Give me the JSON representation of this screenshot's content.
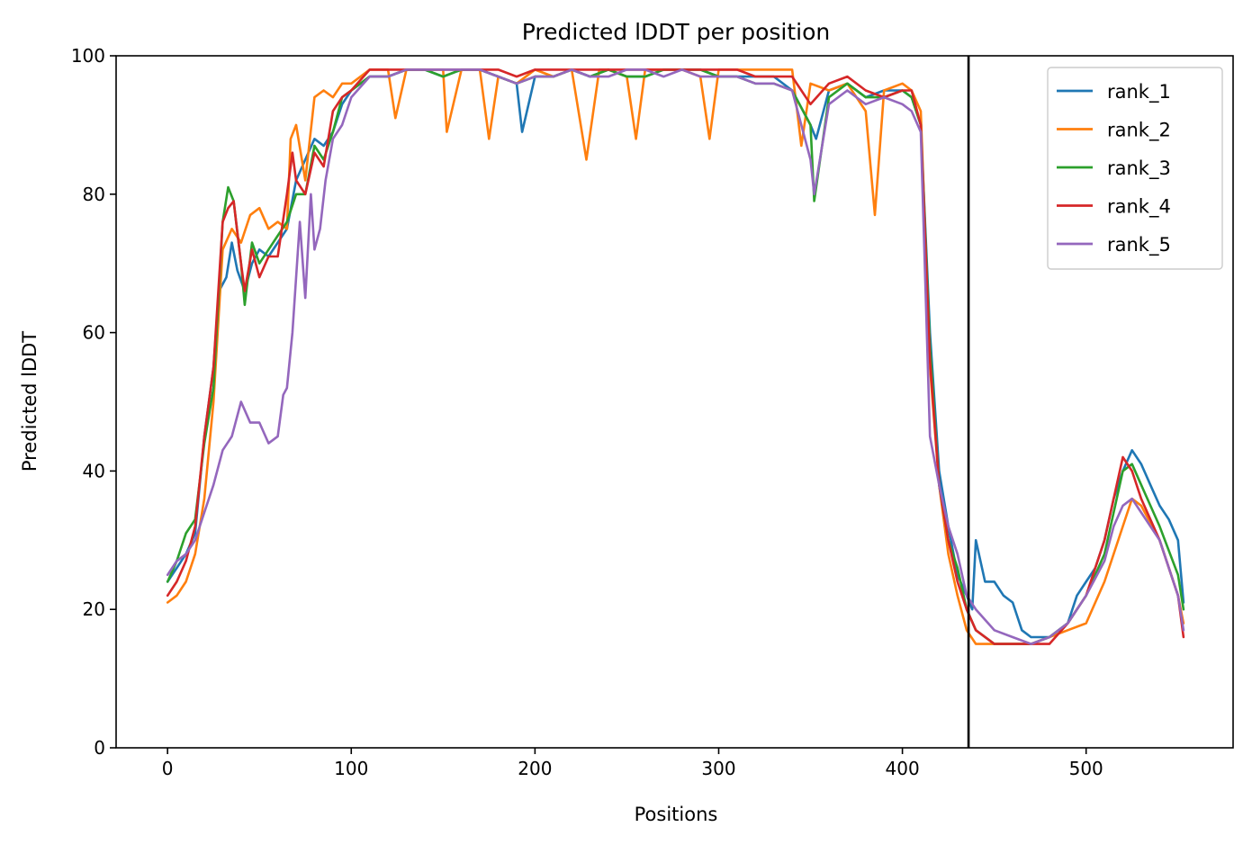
{
  "chart_data": {
    "type": "line",
    "title": "Predicted lDDT per position",
    "xlabel": "Positions",
    "ylabel": "Predicted lDDT",
    "xlim": [
      -28,
      580
    ],
    "ylim": [
      0,
      100
    ],
    "xticks": [
      0,
      100,
      200,
      300,
      400,
      500
    ],
    "yticks": [
      0,
      20,
      40,
      60,
      80,
      100
    ],
    "grid": false,
    "legend_position": "top-right",
    "vertical_line_x": 436,
    "vertical_line_color": "#000000",
    "series": [
      {
        "name": "rank_1",
        "color": "#1f77b4",
        "x": [
          0,
          5,
          10,
          15,
          20,
          25,
          28,
          32,
          35,
          38,
          42,
          46,
          50,
          55,
          60,
          65,
          70,
          75,
          80,
          85,
          90,
          95,
          100,
          110,
          120,
          130,
          140,
          150,
          160,
          170,
          180,
          190,
          193,
          200,
          210,
          220,
          230,
          240,
          250,
          260,
          270,
          280,
          290,
          300,
          310,
          320,
          330,
          340,
          350,
          353,
          360,
          370,
          380,
          390,
          400,
          405,
          410,
          415,
          420,
          425,
          430,
          435,
          438,
          440,
          445,
          450,
          455,
          460,
          465,
          470,
          475,
          480,
          485,
          490,
          495,
          500,
          505,
          510,
          515,
          520,
          525,
          530,
          535,
          540,
          545,
          550,
          553
        ],
        "values": [
          24,
          26,
          28,
          31,
          45,
          55,
          66,
          68,
          73,
          69,
          66,
          70,
          72,
          71,
          73,
          75,
          82,
          85,
          88,
          87,
          89,
          93,
          95,
          97,
          97,
          98,
          98,
          97,
          98,
          98,
          97,
          96,
          89,
          97,
          97,
          98,
          97,
          98,
          97,
          97,
          98,
          98,
          98,
          97,
          97,
          97,
          97,
          95,
          90,
          88,
          95,
          96,
          94,
          95,
          95,
          94,
          90,
          60,
          40,
          32,
          25,
          22,
          20,
          30,
          24,
          24,
          22,
          21,
          17,
          16,
          16,
          16,
          17,
          18,
          22,
          24,
          26,
          30,
          36,
          40,
          43,
          41,
          38,
          35,
          33,
          30,
          21
        ]
      },
      {
        "name": "rank_2",
        "color": "#ff7f0e",
        "x": [
          0,
          5,
          10,
          15,
          20,
          25,
          30,
          35,
          40,
          45,
          50,
          55,
          60,
          65,
          67,
          70,
          75,
          80,
          85,
          90,
          95,
          100,
          110,
          120,
          124,
          130,
          140,
          150,
          152,
          160,
          170,
          175,
          180,
          190,
          200,
          210,
          220,
          228,
          235,
          240,
          250,
          255,
          260,
          270,
          280,
          290,
          295,
          300,
          310,
          320,
          330,
          340,
          345,
          350,
          360,
          370,
          380,
          385,
          390,
          400,
          405,
          410,
          415,
          420,
          425,
          430,
          435,
          440,
          450,
          460,
          470,
          480,
          490,
          500,
          510,
          520,
          525,
          530,
          540,
          550,
          553
        ],
        "values": [
          21,
          22,
          24,
          28,
          36,
          50,
          72,
          75,
          73,
          77,
          78,
          75,
          76,
          75,
          88,
          90,
          82,
          94,
          95,
          94,
          96,
          96,
          98,
          98,
          91,
          98,
          98,
          98,
          89,
          98,
          98,
          88,
          97,
          96,
          98,
          97,
          98,
          85,
          98,
          98,
          97,
          88,
          98,
          98,
          98,
          97,
          88,
          98,
          98,
          98,
          98,
          98,
          87,
          96,
          95,
          96,
          92,
          77,
          95,
          96,
          95,
          92,
          55,
          38,
          28,
          22,
          17,
          15,
          15,
          15,
          15,
          16,
          17,
          18,
          24,
          32,
          36,
          35,
          30,
          22,
          18
        ]
      },
      {
        "name": "rank_3",
        "color": "#2ca02c",
        "x": [
          0,
          5,
          10,
          15,
          20,
          25,
          30,
          33,
          36,
          40,
          42,
          46,
          50,
          55,
          60,
          65,
          70,
          75,
          80,
          85,
          90,
          95,
          100,
          110,
          120,
          130,
          140,
          150,
          160,
          170,
          180,
          190,
          200,
          210,
          220,
          230,
          240,
          250,
          260,
          270,
          280,
          290,
          300,
          310,
          320,
          330,
          340,
          350,
          352,
          360,
          370,
          380,
          390,
          400,
          405,
          410,
          415,
          420,
          425,
          430,
          435,
          440,
          450,
          460,
          470,
          480,
          490,
          500,
          510,
          515,
          520,
          525,
          530,
          540,
          550,
          553
        ],
        "values": [
          24,
          27,
          31,
          33,
          44,
          52,
          76,
          81,
          79,
          70,
          64,
          73,
          70,
          72,
          74,
          76,
          80,
          80,
          87,
          85,
          89,
          94,
          95,
          97,
          97,
          98,
          98,
          97,
          98,
          98,
          97,
          96,
          97,
          97,
          98,
          97,
          98,
          97,
          97,
          98,
          98,
          98,
          97,
          97,
          96,
          96,
          95,
          90,
          79,
          94,
          96,
          94,
          94,
          95,
          94,
          90,
          58,
          38,
          30,
          26,
          20,
          17,
          15,
          15,
          15,
          16,
          18,
          22,
          28,
          34,
          40,
          41,
          38,
          32,
          25,
          20
        ]
      },
      {
        "name": "rank_4",
        "color": "#d62728",
        "x": [
          0,
          5,
          10,
          15,
          20,
          25,
          30,
          33,
          36,
          40,
          42,
          46,
          50,
          55,
          60,
          65,
          68,
          70,
          75,
          80,
          85,
          90,
          95,
          100,
          110,
          120,
          130,
          140,
          150,
          160,
          170,
          180,
          190,
          200,
          210,
          220,
          230,
          240,
          250,
          260,
          270,
          280,
          290,
          300,
          310,
          320,
          330,
          340,
          350,
          360,
          370,
          380,
          390,
          400,
          405,
          410,
          415,
          420,
          425,
          430,
          435,
          440,
          450,
          460,
          470,
          480,
          490,
          500,
          510,
          515,
          520,
          525,
          530,
          540,
          550,
          553
        ],
        "values": [
          22,
          24,
          27,
          32,
          45,
          55,
          76,
          78,
          79,
          70,
          66,
          72,
          68,
          71,
          71,
          80,
          86,
          82,
          80,
          86,
          84,
          92,
          94,
          95,
          98,
          98,
          98,
          98,
          98,
          98,
          98,
          98,
          97,
          98,
          98,
          98,
          98,
          98,
          98,
          98,
          98,
          98,
          98,
          98,
          98,
          97,
          97,
          97,
          93,
          96,
          97,
          95,
          94,
          95,
          95,
          90,
          56,
          38,
          30,
          24,
          20,
          17,
          15,
          15,
          15,
          15,
          18,
          22,
          30,
          36,
          42,
          40,
          36,
          30,
          22,
          16
        ]
      },
      {
        "name": "rank_5",
        "color": "#9467bd",
        "x": [
          0,
          5,
          10,
          15,
          20,
          25,
          30,
          35,
          40,
          45,
          50,
          55,
          60,
          63,
          65,
          68,
          72,
          75,
          78,
          80,
          83,
          86,
          90,
          95,
          100,
          110,
          120,
          130,
          140,
          150,
          160,
          170,
          180,
          190,
          200,
          210,
          220,
          230,
          240,
          250,
          260,
          270,
          280,
          290,
          300,
          310,
          320,
          330,
          340,
          350,
          352,
          360,
          370,
          380,
          390,
          400,
          405,
          410,
          415,
          420,
          425,
          430,
          435,
          440,
          450,
          460,
          470,
          480,
          490,
          500,
          510,
          515,
          520,
          525,
          530,
          540,
          550,
          553
        ],
        "values": [
          25,
          27,
          28,
          30,
          34,
          38,
          43,
          45,
          50,
          47,
          47,
          44,
          45,
          51,
          52,
          60,
          76,
          65,
          80,
          72,
          75,
          82,
          88,
          90,
          94,
          97,
          97,
          98,
          98,
          98,
          98,
          98,
          97,
          96,
          97,
          97,
          98,
          97,
          97,
          98,
          98,
          97,
          98,
          97,
          97,
          97,
          96,
          96,
          95,
          85,
          80,
          93,
          95,
          93,
          94,
          93,
          92,
          89,
          45,
          38,
          32,
          28,
          22,
          20,
          17,
          16,
          15,
          16,
          18,
          22,
          27,
          32,
          35,
          36,
          34,
          30,
          22,
          17
        ]
      }
    ]
  }
}
